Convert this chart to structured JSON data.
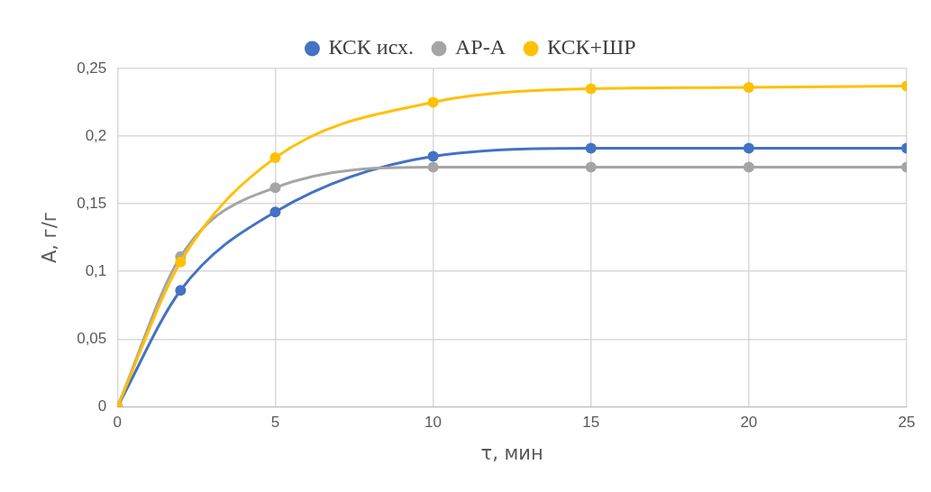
{
  "chart_data": {
    "type": "line",
    "xlabel": "τ, мин",
    "ylabel": "А, г/г",
    "x": [
      0,
      2,
      5,
      10,
      15,
      20,
      25
    ],
    "series": [
      {
        "name": "КСК исх.",
        "color": "#4472c4",
        "values": [
          0,
          0.086,
          0.144,
          0.185,
          0.191,
          0.191,
          0.191
        ]
      },
      {
        "name": "АР-А",
        "color": "#a5a5a5",
        "values": [
          0,
          0.111,
          0.162,
          0.177,
          0.177,
          0.177,
          0.177
        ]
      },
      {
        "name": "КСК+ШР",
        "color": "#ffc000",
        "values": [
          0,
          0.107,
          0.184,
          0.225,
          0.235,
          0.236,
          0.237
        ]
      }
    ],
    "xlim": [
      0,
      25
    ],
    "xticks": [
      0,
      5,
      10,
      15,
      20,
      25
    ],
    "ylim": [
      0,
      0.25
    ],
    "yticks": [
      {
        "value": 0,
        "label": "0"
      },
      {
        "value": 0.05,
        "label": "0,05"
      },
      {
        "value": 0.1,
        "label": "0,1"
      },
      {
        "value": 0.15,
        "label": "0,15"
      },
      {
        "value": 0.2,
        "label": "0,2"
      },
      {
        "value": 0.25,
        "label": "0,25"
      }
    ],
    "grid": true,
    "legend": "top",
    "marker": "circle",
    "line_style": "solid"
  }
}
